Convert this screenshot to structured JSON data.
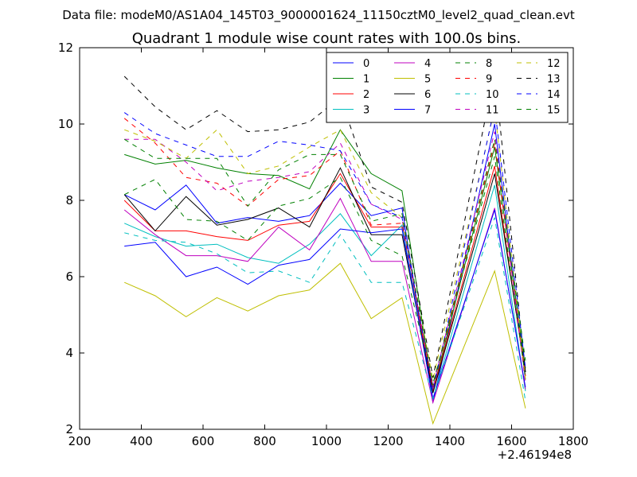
{
  "header": {
    "data_file": "Data file: modeM0/AS1A04_145T03_9000001624_11150cztM0_level2_quad_clean.evt"
  },
  "chart_data": {
    "type": "line",
    "title": "Quadrant 1 module wise count rates with 100.0s bins.",
    "xlabel": "",
    "ylabel": "",
    "x_offset_label": "+2.46194e8",
    "xlim": [
      200,
      1800
    ],
    "ylim": [
      2,
      12
    ],
    "x_ticks": [
      200,
      400,
      600,
      800,
      1000,
      1200,
      1400,
      1600,
      1800
    ],
    "y_ticks": [
      2,
      4,
      6,
      8,
      10,
      12
    ],
    "x_tick_labels": [
      "200",
      "400",
      "600",
      "800",
      "1000",
      "1200",
      "1400",
      "1600",
      "1800"
    ],
    "y_tick_labels": [
      "2",
      "4",
      "6",
      "8",
      "10",
      "12"
    ],
    "legend_location": "top-right",
    "legend_columns": 4,
    "x": [
      345,
      445,
      545,
      645,
      745,
      845,
      945,
      1045,
      1145,
      1245,
      1345,
      1545,
      1645
    ],
    "series": [
      {
        "name": "0",
        "color": "#0000ff",
        "dash": "solid",
        "values": [
          8.15,
          7.75,
          8.4,
          7.4,
          7.55,
          7.45,
          7.6,
          8.45,
          7.6,
          7.8,
          2.7,
          10.0,
          3.3
        ]
      },
      {
        "name": "1",
        "color": "#008000",
        "dash": "solid",
        "values": [
          9.2,
          8.95,
          9.05,
          8.85,
          8.7,
          8.65,
          8.3,
          9.85,
          8.7,
          8.25,
          3.0,
          9.4,
          3.6
        ]
      },
      {
        "name": "2",
        "color": "#ff0000",
        "dash": "solid",
        "values": [
          8.0,
          7.2,
          7.2,
          7.05,
          6.95,
          7.35,
          7.45,
          8.7,
          7.3,
          7.3,
          3.0,
          8.9,
          3.4
        ]
      },
      {
        "name": "3",
        "color": "#00bfbf",
        "dash": "solid",
        "values": [
          7.4,
          7.05,
          6.8,
          6.85,
          6.5,
          6.35,
          6.85,
          7.65,
          6.55,
          7.35,
          2.8,
          8.4,
          3.0
        ]
      },
      {
        "name": "4",
        "color": "#bf00bf",
        "dash": "solid",
        "values": [
          7.75,
          7.1,
          6.55,
          6.55,
          6.4,
          7.3,
          6.7,
          8.05,
          6.4,
          6.4,
          2.7,
          7.8,
          3.05
        ]
      },
      {
        "name": "5",
        "color": "#bfbf00",
        "dash": "solid",
        "values": [
          5.85,
          5.5,
          4.95,
          5.45,
          5.1,
          5.5,
          5.65,
          6.35,
          4.9,
          5.45,
          2.15,
          6.15,
          2.55
        ]
      },
      {
        "name": "6",
        "color": "#000000",
        "dash": "solid",
        "values": [
          8.15,
          7.2,
          8.1,
          7.35,
          7.5,
          7.8,
          7.3,
          8.85,
          7.1,
          7.1,
          2.95,
          8.7,
          3.5
        ]
      },
      {
        "name": "7",
        "color": "#0000ff",
        "dash": "solid",
        "values": [
          6.8,
          6.9,
          6.0,
          6.25,
          5.8,
          6.3,
          6.45,
          7.25,
          7.15,
          7.25,
          2.8,
          7.75,
          3.1
        ]
      },
      {
        "name": "8",
        "color": "#008000",
        "dash": "dashed",
        "values": [
          8.15,
          8.55,
          7.5,
          7.45,
          6.95,
          7.85,
          8.05,
          8.6,
          6.95,
          6.55,
          3.2,
          9.15,
          3.35
        ]
      },
      {
        "name": "9",
        "color": "#ff0000",
        "dash": "dashed",
        "values": [
          10.15,
          9.5,
          8.6,
          8.45,
          7.85,
          8.55,
          8.65,
          9.3,
          7.35,
          7.4,
          3.1,
          9.5,
          3.4
        ]
      },
      {
        "name": "10",
        "color": "#00bfbf",
        "dash": "dashed",
        "values": [
          7.15,
          6.95,
          6.9,
          6.6,
          6.1,
          6.15,
          5.85,
          7.1,
          5.85,
          5.85,
          2.8,
          7.55,
          2.75
        ]
      },
      {
        "name": "11",
        "color": "#bf00bf",
        "dash": "dashed",
        "values": [
          9.6,
          9.6,
          9.0,
          8.25,
          8.5,
          8.6,
          8.75,
          9.5,
          7.9,
          7.5,
          3.1,
          9.8,
          3.2
        ]
      },
      {
        "name": "12",
        "color": "#bfbf00",
        "dash": "dashed",
        "values": [
          9.85,
          9.55,
          9.1,
          9.85,
          8.7,
          8.9,
          9.4,
          9.85,
          8.2,
          7.55,
          3.3,
          10.4,
          3.3
        ]
      },
      {
        "name": "13",
        "color": "#000000",
        "dash": "dashed",
        "values": [
          11.25,
          10.45,
          9.85,
          10.35,
          9.8,
          9.85,
          10.05,
          10.7,
          8.35,
          7.95,
          3.35,
          11.35,
          3.5
        ]
      },
      {
        "name": "14",
        "color": "#0000ff",
        "dash": "dashed",
        "values": [
          10.3,
          9.75,
          9.45,
          9.15,
          9.15,
          9.55,
          9.45,
          9.3,
          7.9,
          7.55,
          3.0,
          10.45,
          3.6
        ]
      },
      {
        "name": "15",
        "color": "#008000",
        "dash": "dashed",
        "values": [
          9.6,
          9.1,
          9.1,
          9.1,
          7.85,
          8.8,
          9.2,
          9.2,
          7.45,
          7.65,
          3.15,
          9.6,
          3.8
        ]
      }
    ]
  }
}
